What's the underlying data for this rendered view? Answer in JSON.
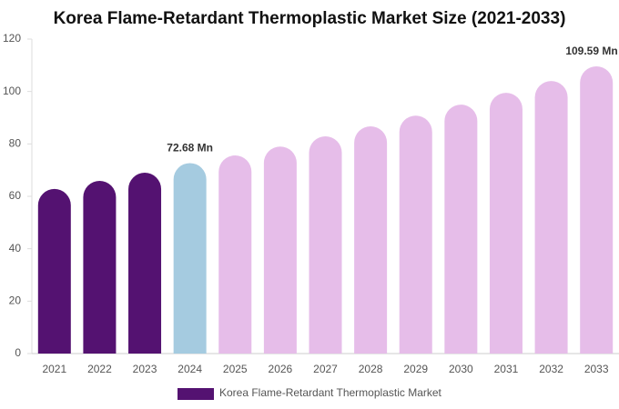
{
  "chart_data": {
    "type": "bar",
    "title": "Korea Flame-Retardant Thermoplastic Market Size (2021-2033)",
    "categories": [
      "2021",
      "2022",
      "2023",
      "2024",
      "2025",
      "2026",
      "2027",
      "2028",
      "2029",
      "2030",
      "2031",
      "2032",
      "2033"
    ],
    "series": [
      {
        "name": "Korea Flame-Retardant Thermoplastic Market",
        "color": "#541271",
        "values": [
          62.8,
          65.9,
          69,
          72.68,
          75.6,
          79,
          82.9,
          86.7,
          90.8,
          95,
          99.5,
          104,
          109.59
        ],
        "value_labels": [
          null,
          null,
          null,
          "72.68 Mn",
          null,
          null,
          null,
          null,
          null,
          null,
          null,
          null,
          "109.59 Mn"
        ],
        "colors": [
          "#541271",
          "#541271",
          "#541271",
          "#a5cbe0",
          "#e6bde9",
          "#e6bde9",
          "#e6bde9",
          "#e6bde9",
          "#e6bde9",
          "#e6bde9",
          "#e6bde9",
          "#e6bde9",
          "#e6bde9"
        ]
      }
    ],
    "ylim": [
      0,
      120
    ],
    "yticks": [
      0,
      20,
      40,
      60,
      80,
      100,
      120
    ]
  }
}
